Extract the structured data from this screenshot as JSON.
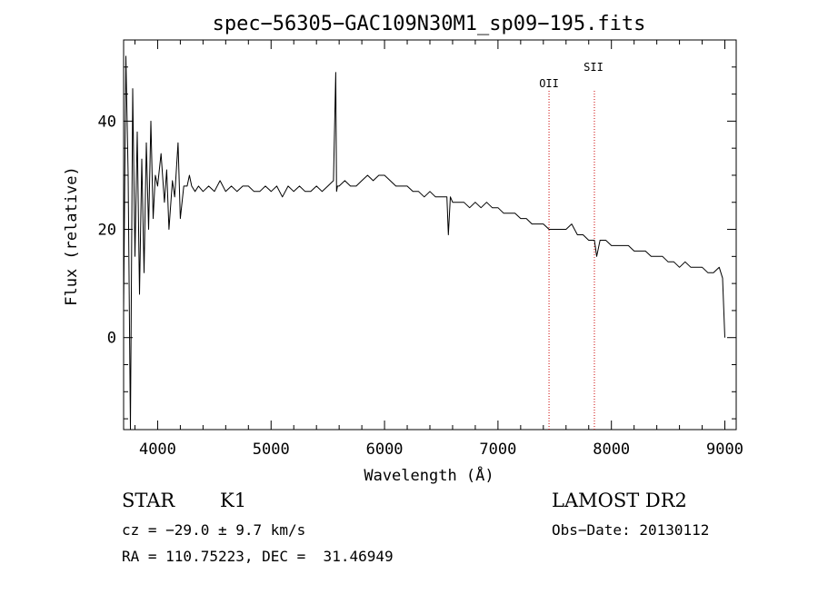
{
  "info": {
    "obj_class": "STAR",
    "subclass": "K1",
    "survey": "LAMOST DR2",
    "cz": "cz = −29.0 ± 9.7 km/s",
    "obs_date": "Obs−Date: 20130112",
    "radec": "RA = 110.75223, DEC =  31.46949"
  },
  "chart_data": {
    "type": "line",
    "title": "spec−56305−GAC109N30M1_sp09−195.fits",
    "xlabel": "Wavelength (Å)",
    "ylabel": "Flux (relative)",
    "xlim": [
      3700,
      9100
    ],
    "ylim": [
      -17,
      55
    ],
    "xticks": [
      4000,
      5000,
      6000,
      7000,
      8000,
      9000
    ],
    "xtick_labels": [
      "4000",
      "5000",
      "6000",
      "7000",
      "8000",
      "9000"
    ],
    "yticks": [
      0,
      20,
      40
    ],
    "ytick_labels": [
      "0",
      "20",
      "40"
    ],
    "line_color": "#000000",
    "marker_color": "#cc0000",
    "lines": [
      {
        "label": "OII",
        "x": 7450
      },
      {
        "label": "SII",
        "x": 7850
      }
    ],
    "series": [
      {
        "x": [
          3700,
          3720,
          3740,
          3760,
          3780,
          3800,
          3820,
          3840,
          3860,
          3880,
          3900,
          3920,
          3940,
          3960,
          3980,
          4000,
          4030,
          4060,
          4080,
          4100,
          4130,
          4150,
          4180,
          4200,
          4230,
          4260,
          4280,
          4300,
          4330,
          4360,
          4400,
          4450,
          4500,
          4550,
          4600,
          4650,
          4700,
          4750,
          4800,
          4850,
          4900,
          4950,
          5000,
          5050,
          5100,
          5150,
          5200,
          5250,
          5300,
          5350,
          5400,
          5450,
          5500,
          5550,
          5570,
          5577,
          5585,
          5600,
          5650,
          5700,
          5750,
          5800,
          5850,
          5900,
          5950,
          6000,
          6050,
          6100,
          6150,
          6200,
          6250,
          6300,
          6350,
          6400,
          6450,
          6500,
          6550,
          6563,
          6580,
          6600,
          6650,
          6700,
          6750,
          6800,
          6850,
          6900,
          6950,
          7000,
          7050,
          7100,
          7150,
          7200,
          7250,
          7300,
          7350,
          7400,
          7450,
          7500,
          7550,
          7600,
          7650,
          7700,
          7750,
          7800,
          7850,
          7870,
          7900,
          7950,
          8000,
          8050,
          8100,
          8150,
          8200,
          8250,
          8300,
          8350,
          8400,
          8450,
          8500,
          8550,
          8600,
          8650,
          8700,
          8750,
          8800,
          8850,
          8900,
          8950,
          8980,
          9000
        ],
        "y": [
          5,
          52,
          30,
          -17,
          46,
          15,
          38,
          8,
          33,
          12,
          36,
          20,
          40,
          22,
          30,
          28,
          34,
          25,
          31,
          20,
          29,
          26,
          36,
          22,
          28,
          28,
          30,
          28,
          27,
          28,
          27,
          28,
          27,
          29,
          27,
          28,
          27,
          28,
          28,
          27,
          27,
          28,
          27,
          28,
          26,
          28,
          27,
          28,
          27,
          27,
          28,
          27,
          28,
          29,
          49,
          27,
          28,
          28,
          29,
          28,
          28,
          29,
          30,
          29,
          30,
          30,
          29,
          28,
          28,
          28,
          27,
          27,
          26,
          27,
          26,
          26,
          26,
          19,
          26,
          25,
          25,
          25,
          24,
          25,
          24,
          25,
          24,
          24,
          23,
          23,
          23,
          22,
          22,
          21,
          21,
          21,
          20,
          20,
          20,
          20,
          21,
          19,
          19,
          18,
          18,
          15,
          18,
          18,
          17,
          17,
          17,
          17,
          16,
          16,
          16,
          15,
          15,
          15,
          14,
          14,
          13,
          14,
          13,
          13,
          13,
          12,
          12,
          13,
          11,
          0
        ]
      }
    ]
  }
}
